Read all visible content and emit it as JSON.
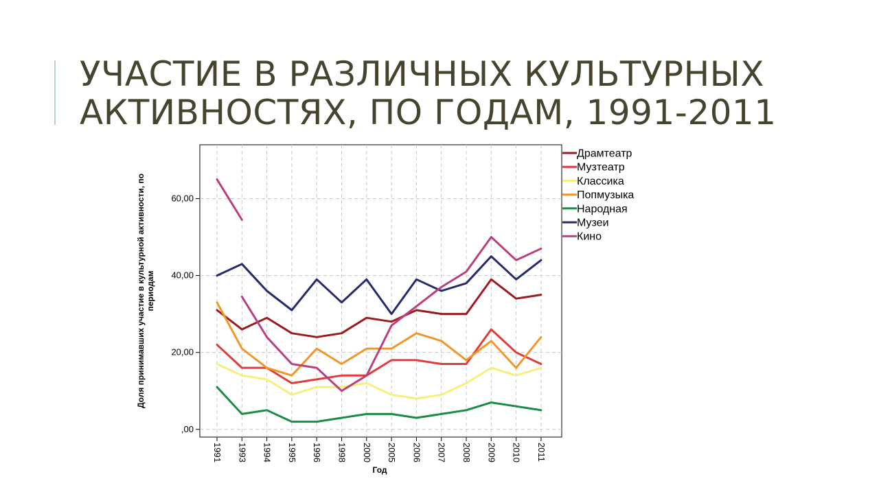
{
  "slide": {
    "title_line1": "УЧАСТИЕ В РАЗЛИЧНЫХ КУЛЬТУРНЫХ",
    "title_line2": "АКТИВНОСТЯХ, ПО ГОДАМ, 1991-2011",
    "title_color": "#46442f",
    "accent_color": "#b9d3c9"
  },
  "chart_data": {
    "type": "line",
    "xlabel": "Год",
    "ylabel_line1": "Доля принимавших участие в культурной активности, по",
    "ylabel_line2": "периодам",
    "categories": [
      "1991",
      "1993",
      "1994",
      "1995",
      "1996",
      "1998",
      "2000",
      "2005",
      "2006",
      "2007",
      "2008",
      "2009",
      "2010",
      "2011"
    ],
    "ylim": [
      -2,
      74
    ],
    "yticks": [
      0,
      20,
      40,
      60
    ],
    "ytick_labels": [
      ",00",
      "20,00",
      "40,00",
      "60,00"
    ],
    "grid": true,
    "legend_position": "right",
    "series": [
      {
        "name": "Драмтеатр",
        "color": "#9b1b1e",
        "values": [
          31,
          26,
          29,
          25,
          24,
          25,
          29,
          28,
          31,
          30,
          30,
          39,
          34,
          35
        ]
      },
      {
        "name": "Музтеатр",
        "color": "#e03c3c",
        "values": [
          22,
          16,
          16,
          12,
          13,
          14,
          14,
          18,
          18,
          17,
          17,
          26,
          20,
          17
        ]
      },
      {
        "name": "Классика",
        "color": "#f5f07a",
        "values": [
          17,
          14,
          13,
          9,
          11,
          11,
          12,
          9,
          8,
          9,
          12,
          16,
          14,
          16
        ]
      },
      {
        "name": "Попмузыка",
        "color": "#f0962a",
        "values": [
          33,
          21,
          16,
          14,
          21,
          17,
          21,
          21,
          25,
          23,
          18,
          23,
          16,
          24
        ]
      },
      {
        "name": "Народная",
        "color": "#1a8c46",
        "values": [
          11,
          4,
          5,
          2,
          2,
          3,
          4,
          4,
          3,
          4,
          5,
          7,
          6,
          5
        ]
      },
      {
        "name": "Музеи",
        "color": "#252a6b",
        "values": [
          40,
          43,
          36,
          31,
          39,
          33,
          39,
          30,
          39,
          36,
          38,
          45,
          39,
          44
        ]
      },
      {
        "name": "Кино",
        "color": "#b8407f",
        "values": [
          65,
          null,
          24,
          17,
          16,
          10,
          14,
          27,
          32,
          37,
          41,
          50,
          44,
          47
        ]
      }
    ],
    "annotations": [
      {
        "series": "Кино",
        "from": {
          "x": "1991",
          "y": 65
        },
        "to": {
          "x": "1993",
          "y": 54.5
        }
      },
      {
        "series": "Кино",
        "from": {
          "x": "1994",
          "y": 24
        },
        "to": {
          "x": "1993",
          "y": 34.5
        }
      }
    ]
  }
}
